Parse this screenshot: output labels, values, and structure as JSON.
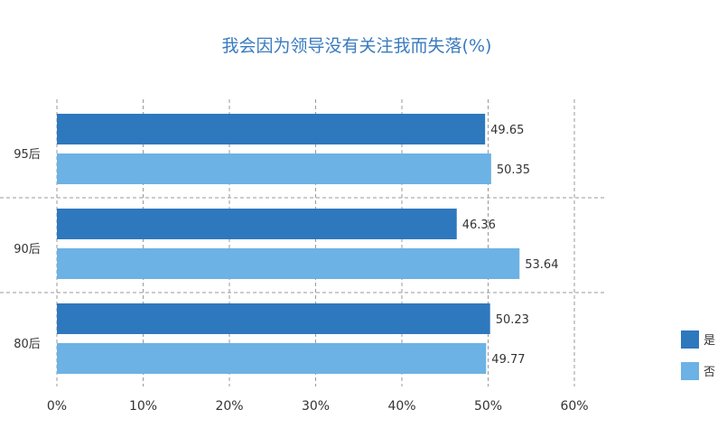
{
  "chart_data": {
    "type": "bar",
    "orientation": "horizontal",
    "title": "我会因为领导没有关注我而失落(%)",
    "xlabel": "",
    "ylabel": "",
    "xlim": [
      0,
      60
    ],
    "x_ticks": [
      "0%",
      "10%",
      "20%",
      "30%",
      "40%",
      "50%",
      "60%"
    ],
    "categories": [
      "95后",
      "90后",
      "80后"
    ],
    "series": [
      {
        "name": "是",
        "color": "#2e78bd",
        "values": [
          49.65,
          46.36,
          50.23
        ]
      },
      {
        "name": "否",
        "color": "#6cb2e4",
        "values": [
          50.35,
          53.64,
          49.77
        ]
      }
    ],
    "data_labels": [
      [
        "49.65",
        "46.36",
        "50.23"
      ],
      [
        "50.35",
        "53.64",
        "49.77"
      ]
    ],
    "grid": "vertical-dashed",
    "legend_position": "right-bottom"
  }
}
